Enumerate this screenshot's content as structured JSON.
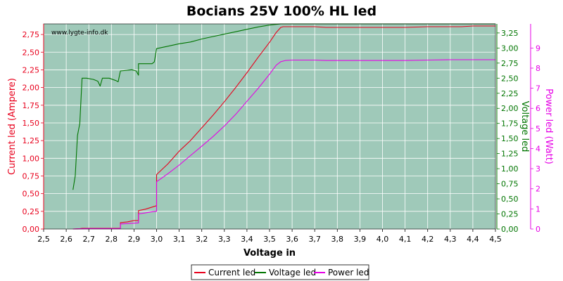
{
  "chart_data": {
    "type": "line",
    "title": "Bocians 25V 100% HL led",
    "watermark": "www.lygte-info.dk",
    "xlabel": "Voltage in",
    "xlim": [
      2.5,
      4.5
    ],
    "x_ticks": [
      "2,5",
      "2,6",
      "2,7",
      "2,8",
      "2,9",
      "3,0",
      "3,1",
      "3,2",
      "3,3",
      "3,4",
      "3,5",
      "3,6",
      "3,7",
      "3,8",
      "3,9",
      "4,0",
      "4,1",
      "4,2",
      "4,3",
      "4,4",
      "4,5"
    ],
    "grid": true,
    "legend_position": "bottom",
    "colors": {
      "plot_bg": "#9fc9b9",
      "grid": "#ffffff",
      "current": "#e8001c",
      "voltage": "#007500",
      "power": "#e600e6"
    },
    "axes": {
      "left": {
        "label": "Current led (Ampere)",
        "lim": [
          0,
          2.9
        ],
        "ticks": [
          "0,00",
          "0,25",
          "0,50",
          "0,75",
          "1,00",
          "1,25",
          "1,50",
          "1,75",
          "2,00",
          "2,25",
          "2,50",
          "2,75"
        ]
      },
      "right1": {
        "label": "Voltage led",
        "lim": [
          0,
          3.4
        ],
        "ticks": [
          "0,00",
          "0,25",
          "0,50",
          "0,75",
          "1,00",
          "1,25",
          "1,50",
          "1,75",
          "2,00",
          "2,25",
          "2,50",
          "2,75",
          "3,00",
          "3,25"
        ]
      },
      "right2": {
        "label": "Power led (Watt)",
        "lim": [
          0,
          10.2
        ],
        "ticks": [
          "0",
          "1",
          "2",
          "3",
          "4",
          "5",
          "6",
          "7",
          "8",
          "9"
        ]
      }
    },
    "series": [
      {
        "name": "Current led",
        "axis": "left",
        "points": [
          [
            2.63,
            0.0
          ],
          [
            2.66,
            0.005
          ],
          [
            2.67,
            0.01
          ],
          [
            2.75,
            0.01
          ],
          [
            2.84,
            0.01
          ],
          [
            2.84,
            0.09
          ],
          [
            2.87,
            0.1
          ],
          [
            2.9,
            0.12
          ],
          [
            2.91,
            0.12
          ],
          [
            2.92,
            0.12
          ],
          [
            2.92,
            0.26
          ],
          [
            2.95,
            0.28
          ],
          [
            2.97,
            0.3
          ],
          [
            2.99,
            0.32
          ],
          [
            3.0,
            0.33
          ],
          [
            3.0,
            0.77
          ],
          [
            3.05,
            0.92
          ],
          [
            3.1,
            1.1
          ],
          [
            3.15,
            1.25
          ],
          [
            3.2,
            1.43
          ],
          [
            3.25,
            1.61
          ],
          [
            3.3,
            1.8
          ],
          [
            3.35,
            2.0
          ],
          [
            3.4,
            2.21
          ],
          [
            3.45,
            2.43
          ],
          [
            3.5,
            2.64
          ],
          [
            3.53,
            2.78
          ],
          [
            3.55,
            2.85
          ],
          [
            3.56,
            2.86
          ],
          [
            3.7,
            2.86
          ],
          [
            3.75,
            2.85
          ],
          [
            4.0,
            2.85
          ],
          [
            4.1,
            2.85
          ],
          [
            4.2,
            2.86
          ],
          [
            4.35,
            2.86
          ],
          [
            4.4,
            2.87
          ],
          [
            4.5,
            2.87
          ]
        ]
      },
      {
        "name": "Voltage led",
        "axis": "right1",
        "points": [
          [
            2.63,
            0.65
          ],
          [
            2.64,
            0.88
          ],
          [
            2.65,
            1.55
          ],
          [
            2.66,
            1.75
          ],
          [
            2.67,
            2.5
          ],
          [
            2.69,
            2.5
          ],
          [
            2.72,
            2.48
          ],
          [
            2.74,
            2.45
          ],
          [
            2.75,
            2.37
          ],
          [
            2.76,
            2.5
          ],
          [
            2.79,
            2.5
          ],
          [
            2.82,
            2.46
          ],
          [
            2.83,
            2.44
          ],
          [
            2.84,
            2.62
          ],
          [
            2.87,
            2.63
          ],
          [
            2.89,
            2.64
          ],
          [
            2.91,
            2.62
          ],
          [
            2.92,
            2.55
          ],
          [
            2.92,
            2.74
          ],
          [
            2.95,
            2.74
          ],
          [
            2.98,
            2.74
          ],
          [
            2.99,
            2.77
          ],
          [
            3.0,
            2.99
          ],
          [
            3.05,
            3.03
          ],
          [
            3.1,
            3.07
          ],
          [
            3.15,
            3.1
          ],
          [
            3.2,
            3.15
          ],
          [
            3.25,
            3.19
          ],
          [
            3.3,
            3.23
          ],
          [
            3.35,
            3.27
          ],
          [
            3.4,
            3.31
          ],
          [
            3.45,
            3.35
          ],
          [
            3.5,
            3.38
          ],
          [
            3.55,
            3.4
          ],
          [
            3.6,
            3.4
          ],
          [
            3.8,
            3.4
          ],
          [
            4.0,
            3.4
          ],
          [
            4.2,
            3.4
          ],
          [
            4.5,
            3.4
          ]
        ]
      },
      {
        "name": "Power led",
        "axis": "right2",
        "points": [
          [
            2.63,
            0.0
          ],
          [
            2.66,
            0.01
          ],
          [
            2.7,
            0.02
          ],
          [
            2.84,
            0.02
          ],
          [
            2.84,
            0.25
          ],
          [
            2.87,
            0.27
          ],
          [
            2.91,
            0.3
          ],
          [
            2.92,
            0.3
          ],
          [
            2.92,
            0.75
          ],
          [
            2.95,
            0.8
          ],
          [
            2.98,
            0.86
          ],
          [
            3.0,
            0.88
          ],
          [
            3.0,
            2.35
          ],
          [
            3.05,
            2.75
          ],
          [
            3.1,
            3.18
          ],
          [
            3.15,
            3.65
          ],
          [
            3.2,
            4.12
          ],
          [
            3.25,
            4.6
          ],
          [
            3.3,
            5.12
          ],
          [
            3.35,
            5.7
          ],
          [
            3.4,
            6.35
          ],
          [
            3.45,
            7.0
          ],
          [
            3.5,
            7.7
          ],
          [
            3.53,
            8.15
          ],
          [
            3.55,
            8.32
          ],
          [
            3.57,
            8.38
          ],
          [
            3.6,
            8.4
          ],
          [
            3.7,
            8.4
          ],
          [
            3.75,
            8.38
          ],
          [
            3.9,
            8.38
          ],
          [
            4.0,
            8.38
          ],
          [
            4.1,
            8.38
          ],
          [
            4.2,
            8.4
          ],
          [
            4.3,
            8.42
          ],
          [
            4.4,
            8.42
          ],
          [
            4.5,
            8.42
          ]
        ]
      }
    ]
  }
}
